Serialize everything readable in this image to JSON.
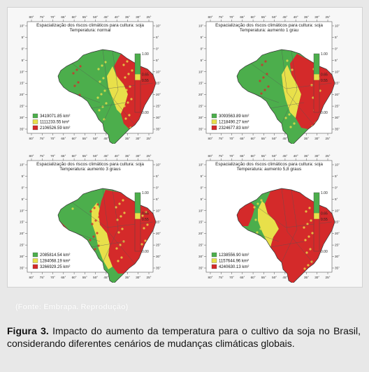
{
  "panels": [
    {
      "title": "Espacialização dos riscos climáticos para cultura: soja",
      "subtitle": "Temperatura: normal",
      "legend": [
        {
          "label": "3419071.85 km²",
          "color": "#4cae4c"
        },
        {
          "label": "1111233.55 km²",
          "color": "#e8e04a"
        },
        {
          "label": "2106526.59 km²",
          "color": "#d42a2a"
        }
      ]
    },
    {
      "title": "Espacialização dos riscos climáticos para cultura: soja",
      "subtitle": "Temperatura: aumento 1 grau",
      "legend": [
        {
          "label": "3093563.89 km²",
          "color": "#4cae4c"
        },
        {
          "label": "1218490.27 km²",
          "color": "#e8e04a"
        },
        {
          "label": "2324677.83 km²",
          "color": "#d42a2a"
        }
      ]
    },
    {
      "title": "Espacialização dos riscos climáticos para cultura: soja",
      "subtitle": "Temperatura: aumento 3 graus",
      "legend": [
        {
          "label": "2085814.54 km²",
          "color": "#4cae4c"
        },
        {
          "label": "1284068.19 km²",
          "color": "#e8e04a"
        },
        {
          "label": "3266929.25 km²",
          "color": "#d42a2a"
        }
      ]
    },
    {
      "title": "Espacialização dos riscos climáticos para cultura: soja",
      "subtitle": "Temperatura: aumento 5,8 graus",
      "legend": [
        {
          "label": "1238556.90 km²",
          "color": "#4cae4c"
        },
        {
          "label": "1157644.96 km²",
          "color": "#e8e04a"
        },
        {
          "label": "4240630.13 km²",
          "color": "#d42a2a"
        }
      ]
    }
  ],
  "color_scale": {
    "labels": [
      "1.00",
      "0.65",
      "0.55",
      "0.00"
    ],
    "colors": {
      "green": "#4cae4c",
      "yellow": "#e8e04a",
      "red": "#d42a2a"
    }
  },
  "axes": {
    "lon_labels": [
      "80°",
      "75°",
      "70°",
      "65°",
      "60°",
      "55°",
      "50°",
      "45°",
      "40°",
      "35°",
      "30°",
      "25°"
    ],
    "lat_labels": [
      "10°",
      "5°",
      "0°",
      "5°",
      "10°",
      "15°",
      "20°",
      "25°",
      "30°",
      "35°"
    ]
  },
  "colors": {
    "land_base": "#ffffff",
    "map_bg": "#ffffff",
    "page_bg": "#e8e8e8"
  },
  "source": "(Fonte: Embrapa. Reprodução)",
  "caption": {
    "label": "Figura 3.",
    "text": "Impacto do aumento da temperatura para o cultivo da soja no Brasil, considerando diferentes cenários de mudanças climáticas globais."
  }
}
